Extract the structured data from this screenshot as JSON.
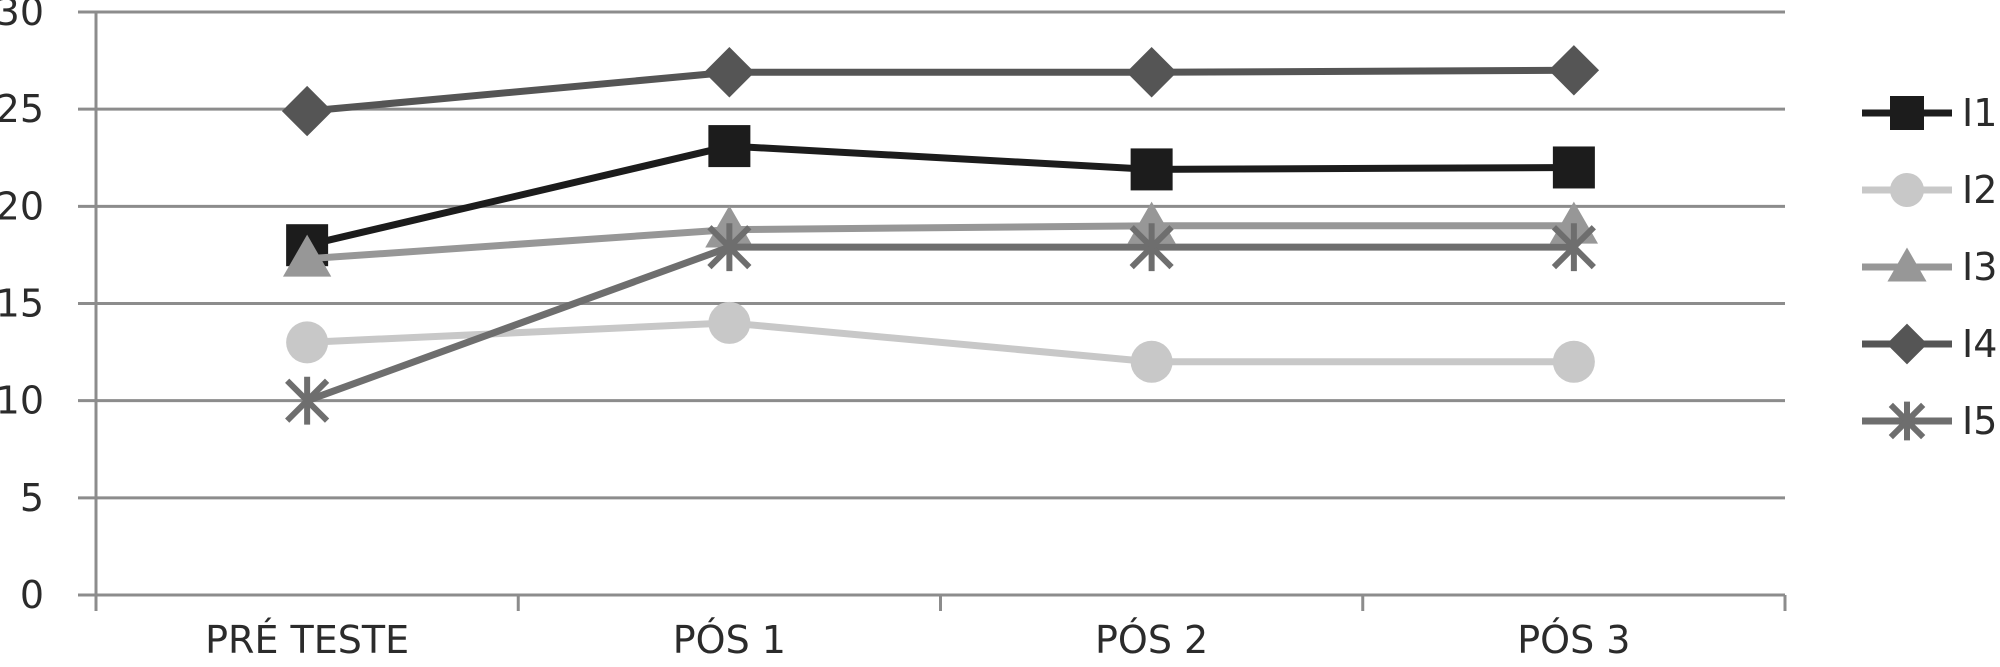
{
  "chart_data": {
    "type": "line",
    "title": "",
    "xlabel": "",
    "ylabel": "",
    "categories": [
      "PRÉ TESTE",
      "PÓS 1",
      "PÓS 2",
      "PÓS 3"
    ],
    "ylim": [
      0,
      30
    ],
    "yticks": [
      "0",
      "5",
      "10",
      "15",
      "20",
      "25",
      "30"
    ],
    "grid": true,
    "legend_position": "right",
    "series": [
      {
        "name": "I1",
        "values": [
          18,
          23.1,
          21.9,
          22
        ],
        "color": "#1c1c1c",
        "marker": "square"
      },
      {
        "name": "I2",
        "values": [
          13,
          14,
          12,
          12
        ],
        "color": "#c8c8c8",
        "marker": "circle"
      },
      {
        "name": "I3",
        "values": [
          17.3,
          18.8,
          19,
          19
        ],
        "color": "#979797",
        "marker": "triangle"
      },
      {
        "name": "I4",
        "values": [
          24.9,
          26.9,
          26.9,
          27
        ],
        "color": "#555555",
        "marker": "diamond"
      },
      {
        "name": "I5",
        "values": [
          10,
          17.9,
          17.9,
          17.9
        ],
        "color": "#6e6e6e",
        "marker": "star"
      }
    ]
  }
}
